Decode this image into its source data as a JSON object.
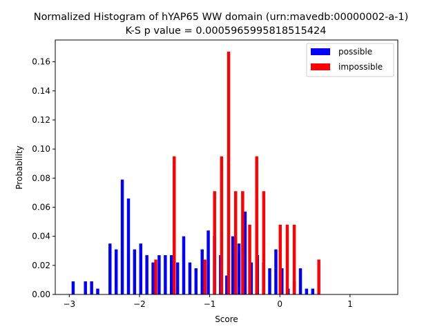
{
  "chart_data": {
    "type": "bar",
    "title": "Normalized Histogram of hYAP65 WW domain (urn:mavedb:00000002-a-1)",
    "subtitle": "K-S p value = 0.0005965995818515424",
    "xlabel": "Score",
    "ylabel": "Probability",
    "xlim": [
      -3.2,
      1.68
    ],
    "ylim": [
      0,
      0.175
    ],
    "x_ticks": [
      -3,
      -2,
      -1,
      0,
      1
    ],
    "x_tick_labels": [
      "−3",
      "−2",
      "−1",
      "0",
      "1"
    ],
    "y_ticks": [
      0.0,
      0.02,
      0.04,
      0.06,
      0.08,
      0.1,
      0.12,
      0.14,
      0.16
    ],
    "y_tick_labels": [
      "0.00",
      "0.02",
      "0.04",
      "0.06",
      "0.08",
      "0.10",
      "0.12",
      "0.14",
      "0.16"
    ],
    "bin_width": 0.0875,
    "legend_position": "top-right",
    "grid": false,
    "series": [
      {
        "name": "possible",
        "color": "#0000ff",
        "x": [
          -2.945,
          -2.77,
          -2.682,
          -2.595,
          -2.42,
          -2.332,
          -2.245,
          -2.157,
          -2.07,
          -1.982,
          -1.895,
          -1.807,
          -1.72,
          -1.632,
          -1.545,
          -1.457,
          -1.37,
          -1.282,
          -1.195,
          -1.107,
          -1.02,
          -0.932,
          -0.845,
          -0.757,
          -0.67,
          -0.582,
          -0.495,
          -0.407,
          -0.32,
          -0.232,
          -0.145,
          -0.057,
          0.03,
          0.118,
          0.205,
          0.293,
          0.38,
          0.468,
          0.555,
          0.643,
          0.73,
          0.818,
          0.905,
          1.08,
          1.168,
          1.255
        ],
        "values": [
          0.009,
          0.009,
          0.009,
          0.004,
          0.035,
          0.031,
          0.079,
          0.066,
          0.031,
          0.035,
          0.027,
          0.022,
          0.027,
          0.027,
          0.027,
          0.022,
          0.04,
          0.022,
          0.018,
          0.031,
          0.044,
          0.04,
          0.027,
          0.013,
          0.04,
          0.035,
          0.057,
          0.022,
          0.027,
          0.022,
          0.018,
          0.031,
          0.018,
          0.004,
          0.009,
          0.018,
          0.004,
          0.004,
          0.0,
          0.0,
          0.0,
          0.0,
          0.0,
          0.0,
          0.0,
          0.0
        ]
      },
      {
        "name": "impossible",
        "color": "#ff0000",
        "x": [
          -1.768,
          -1.505,
          -1.068,
          -0.93,
          -0.83,
          -0.73,
          -0.63,
          -0.53,
          -0.43,
          -0.33,
          -0.23,
          0.005,
          0.105,
          0.205,
          0.555
        ],
        "values": [
          0.024,
          0.095,
          0.024,
          0.071,
          0.095,
          0.167,
          0.071,
          0.071,
          0.048,
          0.095,
          0.071,
          0.048,
          0.048,
          0.048,
          0.024
        ]
      }
    ]
  }
}
